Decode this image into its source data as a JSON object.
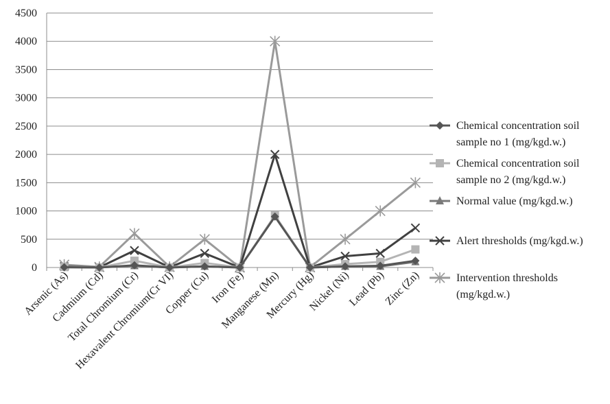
{
  "chart_data": {
    "type": "line",
    "title": "",
    "xlabel": "",
    "ylabel": "",
    "categories": [
      "Arsenic (As)",
      "Cadmium (Cd)",
      "Total Chromium (Cr)",
      "Hexavalent Chromium(Cr VI)",
      "Copper (Cu)",
      "Iron (Fe)",
      "Manganese (Mn)",
      "Mercury (Hg)",
      "Nickel (Ni)",
      "Lead (Pb)",
      "Zinc (Zn)"
    ],
    "ylim": [
      0,
      4500
    ],
    "yticks": [
      0,
      500,
      1000,
      1500,
      2000,
      2500,
      3000,
      3500,
      4000,
      4500
    ],
    "grid": true,
    "legend_position": "right",
    "series": [
      {
        "name": "Chemical concentration soil sample no 1 (mg/kgd.w.)",
        "legend_lines": [
          "Chemical concentration soil",
          "sample no 1 (mg/kgd.w.)"
        ],
        "marker": "diamond",
        "color": "#555555",
        "values": [
          5,
          0.5,
          40,
          0,
          20,
          0,
          900,
          0,
          20,
          30,
          120
        ]
      },
      {
        "name": "Chemical concentration soil sample no 2 (mg/kgd.w.)",
        "legend_lines": [
          "Chemical concentration soil",
          "sample no 2 (mg/kgd.w.)"
        ],
        "marker": "square",
        "color": "#b4b4b4",
        "values": [
          8,
          1,
          120,
          0,
          80,
          0,
          920,
          0,
          60,
          100,
          320
        ]
      },
      {
        "name": "Normal value (mg/kgd.w.)",
        "legend_lines": [
          "Normal value (mg/kgd.w.)"
        ],
        "marker": "triangle",
        "color": "#7a7a7a",
        "values": [
          5,
          1,
          30,
          0,
          20,
          0,
          900,
          0,
          20,
          20,
          100
        ]
      },
      {
        "name": "Alert thresholds (mg/kgd.w.)",
        "legend_lines": [
          "Alert thresholds (mg/kgd.w.)"
        ],
        "marker": "x",
        "color": "#404040",
        "values": [
          15,
          3,
          300,
          4,
          250,
          0,
          2000,
          1,
          200,
          250,
          700
        ]
      },
      {
        "name": "Intervention thresholds (mg/kgd.w.)",
        "legend_lines": [
          "Intervention thresholds",
          "(mg/kgd.w.)"
        ],
        "marker": "star",
        "color": "#9a9a9a",
        "values": [
          50,
          10,
          600,
          10,
          500,
          0,
          4000,
          4,
          500,
          1000,
          1500
        ]
      }
    ]
  }
}
